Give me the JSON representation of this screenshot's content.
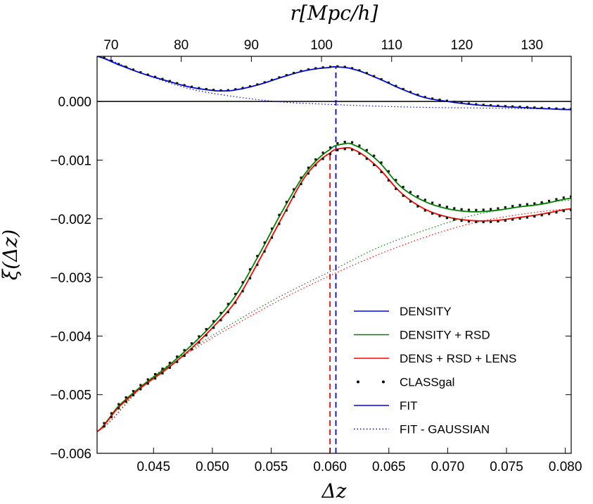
{
  "chart_data": {
    "type": "line",
    "xlabel": "Δz",
    "ylabel": "ξ(Δz)",
    "top_xlabel": "r[Mpc/h]",
    "xlim": [
      0.0402,
      0.0805
    ],
    "ylim": [
      -0.006,
      0.00077
    ],
    "top_xlim": [
      68.0,
      135.6
    ],
    "x_ticks": [
      {
        "value": 0.045,
        "label": "0.045"
      },
      {
        "value": 0.05,
        "label": "0.050"
      },
      {
        "value": 0.055,
        "label": "0.055"
      },
      {
        "value": 0.06,
        "label": "0.060"
      },
      {
        "value": 0.065,
        "label": "0.065"
      },
      {
        "value": 0.07,
        "label": "0.070"
      },
      {
        "value": 0.075,
        "label": "0.075"
      },
      {
        "value": 0.08,
        "label": "0.080"
      }
    ],
    "y_ticks": [
      {
        "value": 0.0,
        "label": "0.000"
      },
      {
        "value": -0.001,
        "label": "−0.001"
      },
      {
        "value": -0.002,
        "label": "−0.002"
      },
      {
        "value": -0.003,
        "label": "−0.003"
      },
      {
        "value": -0.004,
        "label": "−0.004"
      },
      {
        "value": -0.005,
        "label": "−0.005"
      },
      {
        "value": -0.006,
        "label": "−0.006"
      }
    ],
    "top_ticks": [
      {
        "value": 70,
        "label": "70"
      },
      {
        "value": 80,
        "label": "80"
      },
      {
        "value": 90,
        "label": "90"
      },
      {
        "value": 100,
        "label": "100"
      },
      {
        "value": 110,
        "label": "110"
      },
      {
        "value": 120,
        "label": "120"
      },
      {
        "value": 130,
        "label": "130"
      }
    ],
    "zero_line": 0.0,
    "grid": false,
    "legend_position": "lower-right",
    "series": [
      {
        "name": "DENSITY",
        "color": "#0000ff",
        "style": "solid",
        "points": [
          [
            0.0402,
            0.00077
          ],
          [
            0.042,
            0.00063
          ],
          [
            0.044,
            0.00048
          ],
          [
            0.046,
            0.00036
          ],
          [
            0.048,
            0.00025
          ],
          [
            0.05,
            0.00019
          ],
          [
            0.051,
            0.00018
          ],
          [
            0.052,
            0.0002
          ],
          [
            0.054,
            0.00029
          ],
          [
            0.056,
            0.00042
          ],
          [
            0.058,
            0.00053
          ],
          [
            0.06,
            0.00058
          ],
          [
            0.0605,
            0.00059
          ],
          [
            0.062,
            0.00055
          ],
          [
            0.064,
            0.0004
          ],
          [
            0.066,
            0.00022
          ],
          [
            0.068,
            7e-05
          ],
          [
            0.07,
            0.0
          ],
          [
            0.072,
            -5e-05
          ],
          [
            0.074,
            -8e-05
          ],
          [
            0.076,
            -0.0001
          ],
          [
            0.078,
            -0.00012
          ],
          [
            0.0805,
            -0.00014
          ]
        ]
      },
      {
        "name": "DENSITY + RSD",
        "color": "#008000",
        "style": "solid",
        "points": [
          [
            0.0402,
            -0.00563
          ],
          [
            0.042,
            -0.0052
          ],
          [
            0.044,
            -0.00485
          ],
          [
            0.046,
            -0.00455
          ],
          [
            0.048,
            -0.0042
          ],
          [
            0.05,
            -0.0038
          ],
          [
            0.052,
            -0.0033
          ],
          [
            0.054,
            -0.0026
          ],
          [
            0.056,
            -0.00185
          ],
          [
            0.058,
            -0.0012
          ],
          [
            0.06,
            -0.00082
          ],
          [
            0.061,
            -0.00073
          ],
          [
            0.062,
            -0.00074
          ],
          [
            0.064,
            -0.001
          ],
          [
            0.066,
            -0.00145
          ],
          [
            0.068,
            -0.0017
          ],
          [
            0.07,
            -0.00183
          ],
          [
            0.072,
            -0.00188
          ],
          [
            0.074,
            -0.00186
          ],
          [
            0.076,
            -0.0018
          ],
          [
            0.078,
            -0.00175
          ],
          [
            0.0805,
            -0.00165
          ]
        ]
      },
      {
        "name": "DENS + RSD + LENS",
        "color": "#ff0000",
        "style": "solid",
        "points": [
          [
            0.0402,
            -0.00563
          ],
          [
            0.042,
            -0.00522
          ],
          [
            0.044,
            -0.00487
          ],
          [
            0.046,
            -0.00458
          ],
          [
            0.048,
            -0.00425
          ],
          [
            0.05,
            -0.00386
          ],
          [
            0.052,
            -0.0034
          ],
          [
            0.054,
            -0.0027
          ],
          [
            0.056,
            -0.00195
          ],
          [
            0.058,
            -0.00125
          ],
          [
            0.06,
            -0.00088
          ],
          [
            0.061,
            -0.0008
          ],
          [
            0.062,
            -0.00082
          ],
          [
            0.064,
            -0.00111
          ],
          [
            0.066,
            -0.00155
          ],
          [
            0.068,
            -0.00183
          ],
          [
            0.07,
            -0.00197
          ],
          [
            0.072,
            -0.00203
          ],
          [
            0.074,
            -0.00203
          ],
          [
            0.076,
            -0.00198
          ],
          [
            0.078,
            -0.00192
          ],
          [
            0.0805,
            -0.00183
          ]
        ]
      }
    ],
    "gaussian_series": [
      {
        "color": "#0000ff",
        "style": "dotted",
        "points": [
          [
            0.0402,
            0.00077
          ],
          [
            0.044,
            0.00048
          ],
          [
            0.048,
            0.00022
          ],
          [
            0.052,
            8e-05
          ],
          [
            0.056,
            -1e-05
          ],
          [
            0.06,
            -5e-05
          ],
          [
            0.064,
            -8e-05
          ],
          [
            0.068,
            -0.0001
          ],
          [
            0.072,
            -0.00011
          ],
          [
            0.076,
            -0.00012
          ],
          [
            0.0805,
            -0.00013
          ]
        ]
      },
      {
        "color": "#008000",
        "style": "dotted",
        "points": [
          [
            0.0402,
            -0.00563
          ],
          [
            0.044,
            -0.00485
          ],
          [
            0.048,
            -0.00425
          ],
          [
            0.052,
            -0.00375
          ],
          [
            0.056,
            -0.0033
          ],
          [
            0.06,
            -0.0029
          ],
          [
            0.064,
            -0.0025
          ],
          [
            0.068,
            -0.0022
          ],
          [
            0.072,
            -0.00195
          ],
          [
            0.076,
            -0.0018
          ],
          [
            0.0805,
            -0.00168
          ]
        ]
      },
      {
        "color": "#ff0000",
        "style": "dotted",
        "points": [
          [
            0.0402,
            -0.00563
          ],
          [
            0.044,
            -0.00487
          ],
          [
            0.048,
            -0.00428
          ],
          [
            0.052,
            -0.0038
          ],
          [
            0.056,
            -0.00336
          ],
          [
            0.06,
            -0.00297
          ],
          [
            0.064,
            -0.00262
          ],
          [
            0.068,
            -0.00232
          ],
          [
            0.072,
            -0.00208
          ],
          [
            0.076,
            -0.00193
          ],
          [
            0.0805,
            -0.00183
          ]
        ]
      }
    ],
    "peak_markers": [
      {
        "x": 0.0605,
        "color": "#0000ff",
        "style": "dashed"
      },
      {
        "x": 0.06,
        "color": "#ff0000",
        "style": "dashed"
      }
    ],
    "legend": [
      {
        "label": "DENSITY",
        "color": "#0000ff",
        "style": "solid"
      },
      {
        "label": "DENSITY + RSD",
        "color": "#008000",
        "style": "solid"
      },
      {
        "label": "DENS + RSD + LENS",
        "color": "#ff0000",
        "style": "solid"
      },
      {
        "label": "CLASSgal",
        "color": "#000000",
        "style": "dots"
      },
      {
        "label": "FIT",
        "color": "#0000ff",
        "style": "solid"
      },
      {
        "label": "FIT - GAUSSIAN",
        "color": "#0000ff",
        "style": "dotted"
      }
    ]
  }
}
